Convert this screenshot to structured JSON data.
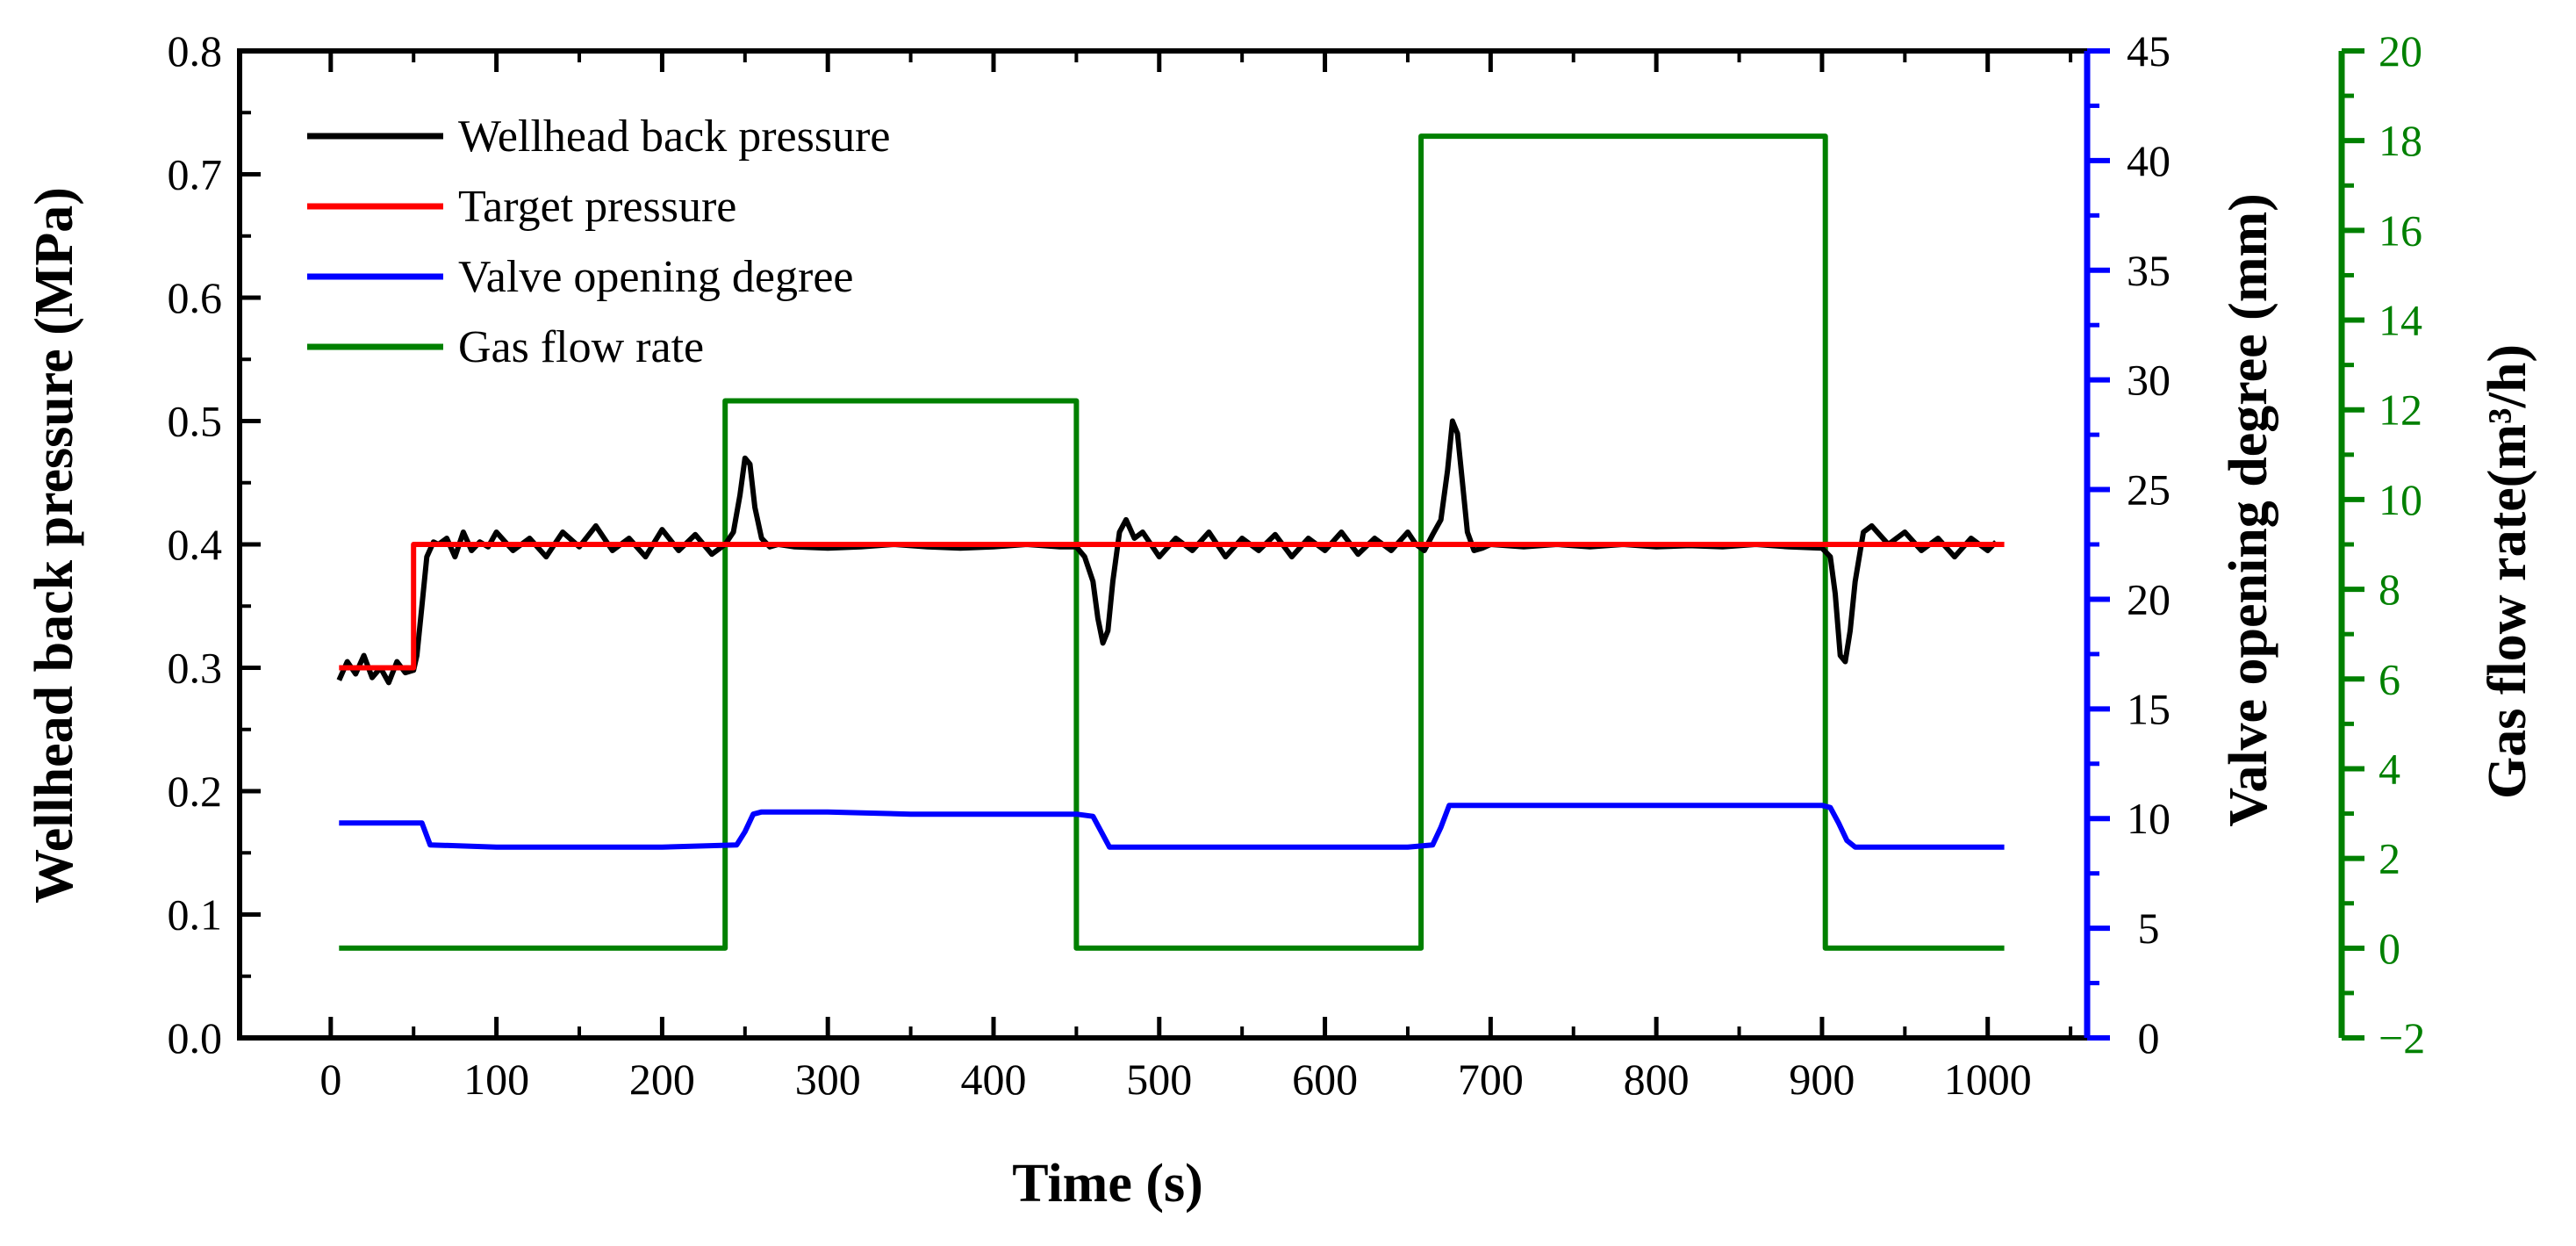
{
  "chart_data": {
    "type": "line",
    "xlabel": "Time (s)",
    "ylabel_left": "Wellhead back pressure (MPa)",
    "ylabel_right_1": "Valve opening degree (mm)",
    "ylabel_right_2": "Gas flow rate(m³/h)",
    "xlim": [
      -55,
      1060
    ],
    "ylim_left": [
      0.0,
      0.8
    ],
    "ylim_right_1": [
      0,
      45
    ],
    "ylim_right_2": [
      -2,
      20
    ],
    "x_ticks": [
      "0",
      "100",
      "200",
      "300",
      "400",
      "500",
      "600",
      "700",
      "800",
      "900",
      "1000"
    ],
    "y_left_ticks": [
      "0.0",
      "0.1",
      "0.2",
      "0.3",
      "0.4",
      "0.5",
      "0.6",
      "0.7",
      "0.8"
    ],
    "y_right_1_ticks": [
      "0",
      "5",
      "10",
      "15",
      "20",
      "25",
      "30",
      "35",
      "40",
      "45"
    ],
    "y_right_2_ticks": [
      "−2",
      "0",
      "2",
      "4",
      "6",
      "8",
      "10",
      "12",
      "14",
      "16",
      "18",
      "20"
    ],
    "legend_position": "top-left",
    "series": [
      {
        "name": "Wellhead back pressure",
        "axis": "left",
        "color": "#000000",
        "x": [
          5,
          10,
          15,
          20,
          25,
          30,
          35,
          40,
          45,
          50,
          52,
          55,
          58,
          62,
          65,
          70,
          75,
          80,
          85,
          90,
          95,
          100,
          110,
          120,
          130,
          140,
          150,
          160,
          170,
          180,
          190,
          200,
          210,
          220,
          230,
          238,
          243,
          247,
          250,
          253,
          256,
          260,
          265,
          270,
          280,
          300,
          320,
          340,
          360,
          380,
          400,
          420,
          440,
          450,
          455,
          460,
          463,
          466,
          469,
          472,
          476,
          480,
          485,
          490,
          500,
          510,
          520,
          530,
          540,
          550,
          560,
          570,
          580,
          590,
          600,
          610,
          620,
          630,
          640,
          650,
          655,
          660,
          665,
          670,
          674,
          677,
          680,
          683,
          686,
          690,
          695,
          700,
          720,
          740,
          760,
          780,
          800,
          820,
          840,
          860,
          880,
          900,
          905,
          908,
          911,
          914,
          917,
          920,
          925,
          930,
          940,
          950,
          960,
          970,
          980,
          990,
          1000,
          1005
        ],
        "y": [
          0.29,
          0.305,
          0.295,
          0.31,
          0.292,
          0.3,
          0.288,
          0.305,
          0.296,
          0.298,
          0.31,
          0.35,
          0.39,
          0.402,
          0.4,
          0.405,
          0.39,
          0.41,
          0.395,
          0.402,
          0.398,
          0.41,
          0.395,
          0.405,
          0.39,
          0.41,
          0.398,
          0.415,
          0.395,
          0.405,
          0.39,
          0.412,
          0.395,
          0.408,
          0.392,
          0.4,
          0.41,
          0.44,
          0.47,
          0.465,
          0.43,
          0.405,
          0.398,
          0.4,
          0.398,
          0.397,
          0.398,
          0.4,
          0.398,
          0.397,
          0.398,
          0.4,
          0.398,
          0.398,
          0.39,
          0.37,
          0.34,
          0.32,
          0.33,
          0.37,
          0.41,
          0.42,
          0.405,
          0.41,
          0.39,
          0.405,
          0.395,
          0.41,
          0.39,
          0.405,
          0.395,
          0.408,
          0.39,
          0.405,
          0.395,
          0.41,
          0.392,
          0.405,
          0.395,
          0.41,
          0.4,
          0.395,
          0.408,
          0.42,
          0.46,
          0.5,
          0.49,
          0.45,
          0.41,
          0.395,
          0.397,
          0.4,
          0.398,
          0.4,
          0.398,
          0.4,
          0.398,
          0.399,
          0.398,
          0.4,
          0.398,
          0.397,
          0.39,
          0.36,
          0.31,
          0.305,
          0.33,
          0.37,
          0.41,
          0.415,
          0.4,
          0.41,
          0.395,
          0.405,
          0.39,
          0.405,
          0.395,
          0.402
        ]
      },
      {
        "name": "Target pressure",
        "axis": "left",
        "color": "#ff0000",
        "x": [
          5,
          50,
          50,
          1010
        ],
        "y": [
          0.3,
          0.3,
          0.4,
          0.4
        ]
      },
      {
        "name": "Valve opening degree",
        "axis": "right_1",
        "color": "#0000ff",
        "x": [
          5,
          50,
          55,
          60,
          100,
          200,
          245,
          250,
          255,
          260,
          300,
          350,
          400,
          450,
          460,
          465,
          470,
          475,
          500,
          550,
          600,
          650,
          665,
          670,
          675,
          680,
          700,
          750,
          800,
          850,
          900,
          905,
          910,
          915,
          920,
          925,
          950,
          1000,
          1010
        ],
        "y": [
          9.8,
          9.8,
          9.8,
          8.8,
          8.7,
          8.7,
          8.8,
          9.4,
          10.2,
          10.3,
          10.3,
          10.2,
          10.2,
          10.2,
          10.1,
          9.4,
          8.7,
          8.7,
          8.7,
          8.7,
          8.7,
          8.7,
          8.8,
          9.6,
          10.6,
          10.6,
          10.6,
          10.6,
          10.6,
          10.6,
          10.6,
          10.5,
          9.8,
          9.0,
          8.7,
          8.7,
          8.7,
          8.7,
          8.7
        ]
      },
      {
        "name": "Gas flow rate",
        "axis": "right_2",
        "color": "#008000",
        "x": [
          5,
          238,
          238,
          450,
          450,
          658,
          658,
          902,
          902,
          1010
        ],
        "y": [
          0,
          0,
          12.2,
          12.2,
          0,
          0,
          18.1,
          18.1,
          0,
          0
        ]
      }
    ]
  }
}
